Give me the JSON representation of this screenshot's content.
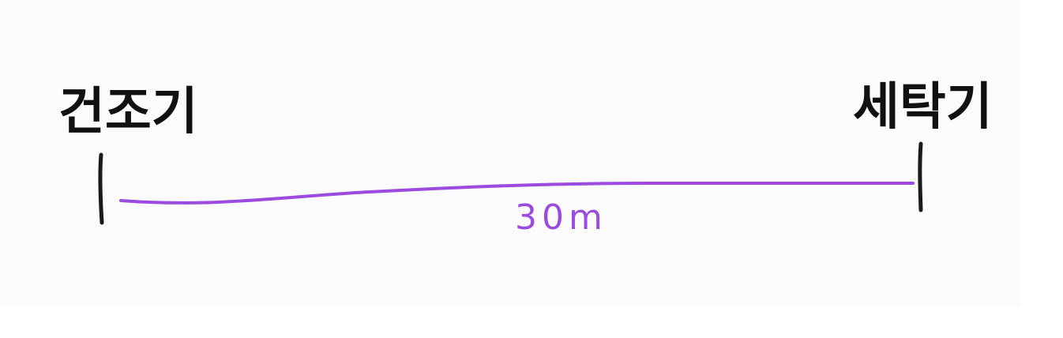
{
  "left_endpoint": {
    "label": "건조기"
  },
  "right_endpoint": {
    "label": "세탁기"
  },
  "distance": {
    "label": "30m"
  },
  "colors": {
    "background": "#fcfbfc",
    "tick": "#1a1a1a",
    "measure_line": "#9B4BE0",
    "label_text": "#111111"
  }
}
